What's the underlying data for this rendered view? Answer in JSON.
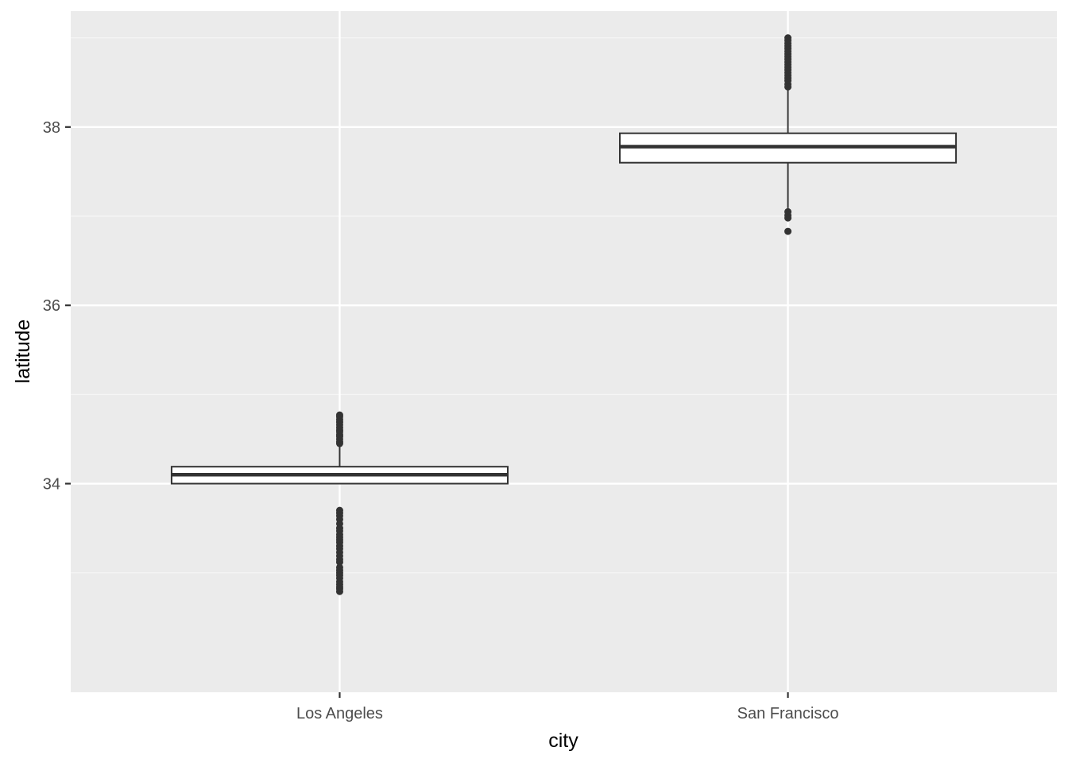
{
  "chart_data": {
    "type": "boxplot",
    "title": "",
    "xlabel": "city",
    "ylabel": "latitude",
    "categories": [
      "Los Angeles",
      "San Francisco"
    ],
    "ylim": [
      31.66,
      39.3
    ],
    "yticks": [
      34,
      36,
      38
    ],
    "ytick_labels": [
      "34",
      "36",
      "38"
    ],
    "grid": true,
    "legend": "none",
    "boxes": [
      {
        "category": "Los Angeles",
        "whisker_low": 34.0,
        "q1": 34.0,
        "median": 34.1,
        "q3": 34.19,
        "whisker_high": 34.44,
        "outliers_high": [
          34.45,
          34.47,
          34.5,
          34.53,
          34.55,
          34.58,
          34.6,
          34.63,
          34.66,
          34.69,
          34.72,
          34.75,
          34.77
        ],
        "outliers_low": [
          33.7,
          33.67,
          33.64,
          33.6,
          33.55,
          33.5,
          33.47,
          33.43,
          33.4,
          33.37,
          33.34,
          33.3,
          33.27,
          33.23,
          33.19,
          33.15,
          33.12,
          33.06,
          33.03,
          33.0,
          32.97,
          32.94,
          32.9,
          32.87,
          32.84,
          32.82,
          32.79
        ]
      },
      {
        "category": "San Francisco",
        "whisker_low": 37.09,
        "q1": 37.6,
        "median": 37.78,
        "q3": 37.93,
        "whisker_high": 38.42,
        "outliers_high": [
          38.45,
          38.48,
          38.52,
          38.55,
          38.58,
          38.61,
          38.64,
          38.67,
          38.7,
          38.73,
          38.76,
          38.79,
          38.82,
          38.85,
          38.88,
          38.91,
          38.94,
          38.97,
          39.0
        ],
        "outliers_low": [
          37.05,
          37.01,
          36.98,
          36.83
        ]
      }
    ],
    "colors": {
      "panel_background": "#ebebeb",
      "grid_major": "#ffffff",
      "grid_minor": "#f5f5f5",
      "box_fill": "#ffffff",
      "box_line": "#333333",
      "outlier": "#333333",
      "tick_text": "#4d4d4d",
      "title_text": "#000000"
    }
  }
}
